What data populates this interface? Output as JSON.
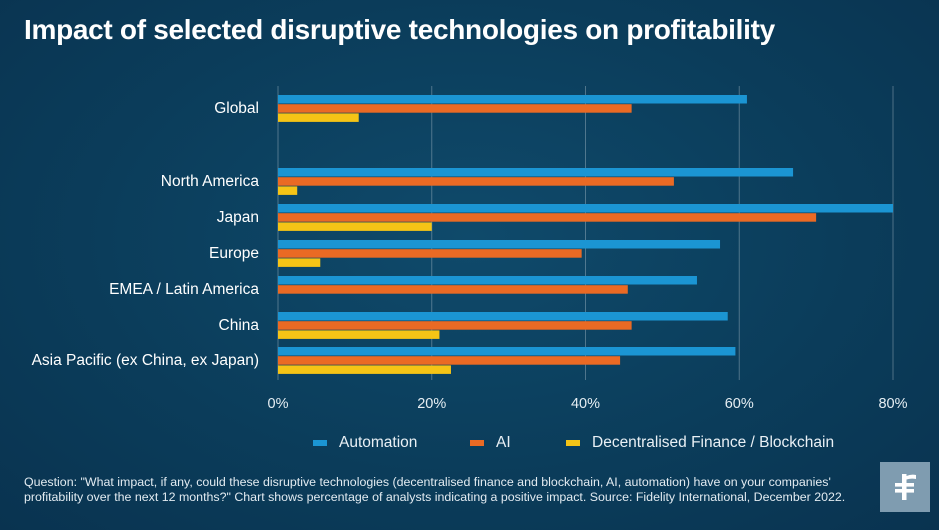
{
  "title": "Impact of selected disruptive technologies on profitability",
  "chart_data": {
    "type": "bar",
    "orientation": "horizontal",
    "categories": [
      "Global",
      "North America",
      "Japan",
      "Europe",
      "EMEA / Latin America",
      "China",
      "Asia Pacific (ex China, ex Japan)"
    ],
    "series": [
      {
        "name": "Automation",
        "color": "#1b95d3",
        "values": [
          61,
          67,
          80,
          57.5,
          54.5,
          58.5,
          59.5
        ]
      },
      {
        "name": "AI",
        "color": "#ea6a24",
        "values": [
          46,
          51.5,
          70,
          39.5,
          45.5,
          46,
          44.5
        ]
      },
      {
        "name": "Decentralised Finance / Blockchain",
        "color": "#f5c416",
        "values": [
          10.5,
          2.5,
          20,
          5.5,
          0,
          21,
          22.5
        ]
      }
    ],
    "xlim": [
      0,
      80
    ],
    "xticks": [
      "0%",
      "20%",
      "40%",
      "60%",
      "80%"
    ],
    "grid": true,
    "legend_position": "bottom"
  },
  "footnote": "Question: \"What impact, if any, could these disruptive technologies (decentralised finance and blockchain, AI, automation) have on your companies' profitability over the next 12 months?\" Chart shows percentage of analysts indicating a positive impact. Source: Fidelity International, December 2022.",
  "logo": {
    "icon": "fidelity-logo-icon"
  }
}
